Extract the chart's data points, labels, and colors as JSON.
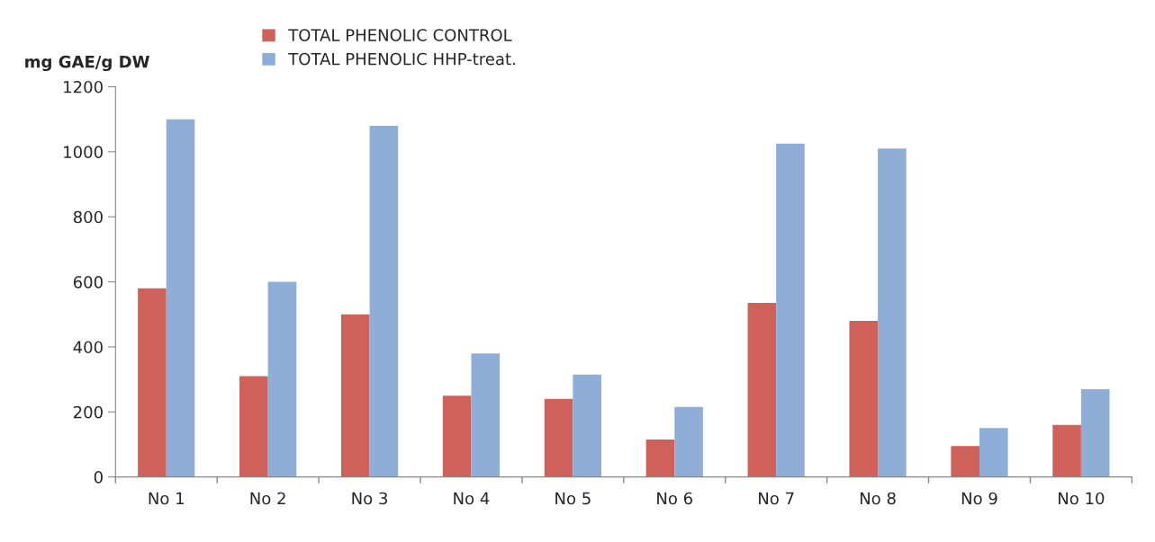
{
  "chart_data": {
    "type": "bar",
    "ylabel": "mg GAE/g DW",
    "categories": [
      "No 1",
      "No 2",
      "No 3",
      "No 4",
      "No 5",
      "No 6",
      "No 7",
      "No 8",
      "No 9",
      "No 10"
    ],
    "series": [
      {
        "name": "TOTAL PHENOLIC CONTROL",
        "color": "#d0605a",
        "values": [
          580,
          310,
          500,
          250,
          240,
          115,
          535,
          480,
          95,
          160
        ]
      },
      {
        "name": "TOTAL PHENOLIC HHP-treat.",
        "color": "#8eaed8",
        "values": [
          1100,
          600,
          1080,
          380,
          315,
          215,
          1025,
          1010,
          150,
          270
        ]
      }
    ],
    "ylim": [
      0,
      1200
    ],
    "yticks": [
      0,
      200,
      400,
      600,
      800,
      1000,
      1200
    ],
    "grid": false,
    "legend": "top"
  }
}
